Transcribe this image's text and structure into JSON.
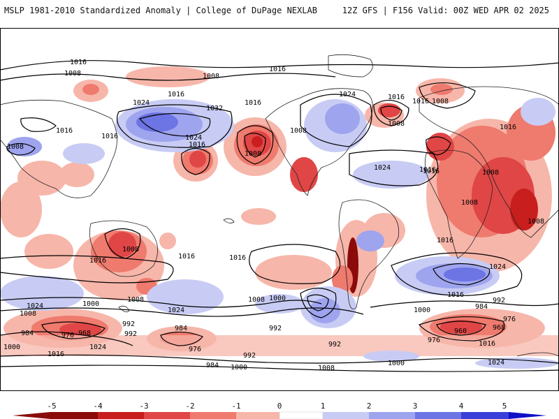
{
  "header": {
    "title": "MSLP 1981-2010 Standardized Anomaly | College of DuPage NEXLAB",
    "valid": "12Z GFS | F156 Valid: 00Z WED APR 02 2025"
  },
  "colorbar": {
    "ticks": [
      "-5",
      "-4",
      "-3",
      "-2",
      "-1",
      "0",
      "1",
      "2",
      "3",
      "4",
      "5"
    ],
    "colors": [
      "#8b0a0a",
      "#c81e1e",
      "#e04646",
      "#ef7a6e",
      "#f7b6aa",
      "#ffffff",
      "#c8ccf4",
      "#9ea4ee",
      "#6d74e4",
      "#3b3fd9",
      "#1010c8"
    ]
  },
  "isobar_labels": [
    "1016",
    "1008",
    "1008",
    "1016",
    "1016",
    "1024",
    "1016",
    "1032",
    "1016",
    "1008",
    "1016",
    "1016",
    "1008",
    "1024",
    "1008",
    "1016",
    "1016",
    "1016",
    "1024",
    "1016",
    "1008",
    "1008",
    "1016",
    "1024",
    "1008",
    "1008",
    "1024",
    "1016",
    "1008",
    "1008",
    "1016",
    "1016",
    "1016",
    "1024",
    "1008",
    "1000",
    "1024",
    "1008",
    "1000",
    "992",
    "984",
    "968",
    "976",
    "992",
    "1024",
    "1000",
    "1016",
    "984",
    "976",
    "992",
    "1008",
    "992",
    "984",
    "1000",
    "1008",
    "1000",
    "1016",
    "984",
    "992",
    "976",
    "960",
    "968",
    "976",
    "1016",
    "1000",
    "1024",
    "992"
  ]
}
